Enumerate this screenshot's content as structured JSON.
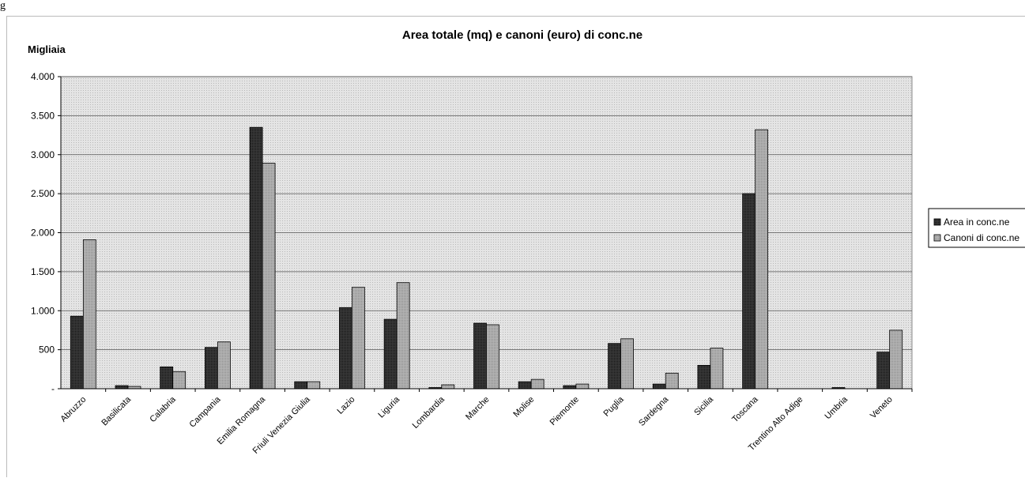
{
  "corner_label": "g",
  "chart_data": {
    "type": "bar",
    "title": "Area totale (mq) e canoni (euro) di conc.ne",
    "unit_label": "Migliaia",
    "ylim": [
      0,
      4000
    ],
    "yticks": [
      0,
      500,
      1000,
      1500,
      2000,
      2500,
      3000,
      3500,
      4000
    ],
    "ytick_labels": [
      "-",
      "500",
      "1.000",
      "1.500",
      "2.000",
      "2.500",
      "3.000",
      "3.500",
      "4.000"
    ],
    "categories": [
      "Abruzzo",
      "Basilicata",
      "Calabria",
      "Campania",
      "Emilia Romagna",
      "Friuli Venezia Giulia",
      "Lazio",
      "Liguria",
      "Lombardia",
      "Marche",
      "Molise",
      "Piemonte",
      "Puglia",
      "Sardegna",
      "Sicilia",
      "Toscana",
      "Trentino Alto Adige",
      "Umbria",
      "Veneto"
    ],
    "series": [
      {
        "name": "Area in conc.ne",
        "color": "#2f2f2f",
        "values": [
          930,
          40,
          280,
          530,
          3350,
          90,
          1040,
          890,
          15,
          840,
          90,
          40,
          580,
          60,
          300,
          2500,
          0,
          15,
          470
        ]
      },
      {
        "name": "Canoni di conc.ne",
        "color": "#a8a8a8",
        "values": [
          1910,
          30,
          220,
          600,
          2890,
          90,
          1300,
          1360,
          50,
          820,
          120,
          60,
          640,
          200,
          520,
          3320,
          0,
          0,
          750
        ]
      }
    ],
    "grid": true,
    "legend_position": "right"
  }
}
